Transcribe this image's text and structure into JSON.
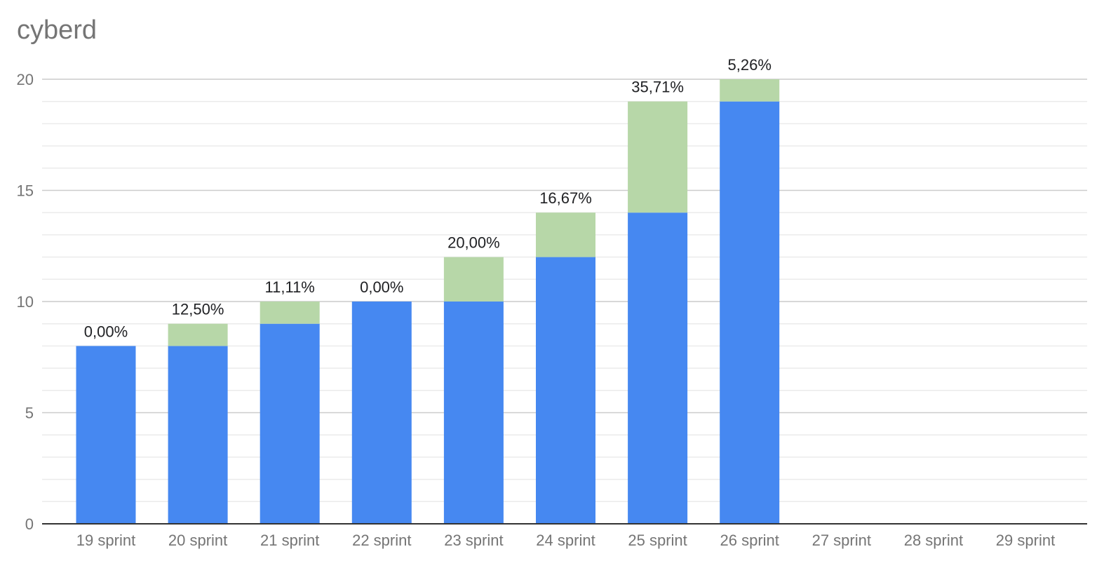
{
  "chart_data": {
    "type": "bar",
    "stacked": true,
    "title": "cyberd",
    "xlabel": "",
    "ylabel": "",
    "ylim": [
      0,
      20
    ],
    "y_ticks": [
      "0",
      "5",
      "10",
      "15",
      "20"
    ],
    "grid": true,
    "categories": [
      "19 sprint",
      "20 sprint",
      "21 sprint",
      "22 sprint",
      "23 sprint",
      "24 sprint",
      "25 sprint",
      "26 sprint",
      "27 sprint",
      "28 sprint",
      "29 sprint"
    ],
    "series": [
      {
        "color": "#4688f1",
        "values": [
          8,
          8,
          9,
          10,
          10,
          12,
          14,
          19,
          null,
          null,
          null
        ]
      },
      {
        "color": "#b7d7a8",
        "values": [
          0,
          1,
          1,
          0,
          2,
          2,
          5,
          1,
          null,
          null,
          null
        ]
      }
    ],
    "data_labels": [
      "0,00%",
      "12,50%",
      "11,11%",
      "0,00%",
      "20,00%",
      "16,67%",
      "35,71%",
      "5,26%",
      "",
      "",
      ""
    ]
  }
}
